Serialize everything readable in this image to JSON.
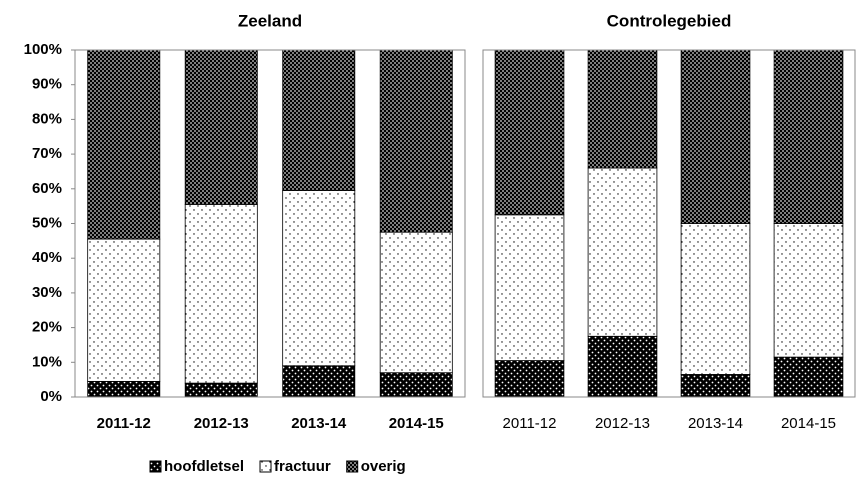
{
  "chart_data": [
    {
      "type": "bar",
      "stacked": true,
      "title": "Zeeland",
      "categories": [
        "2011-12",
        "2012-13",
        "2013-14",
        "2014-15"
      ],
      "category_font_weight": "bold",
      "series": [
        {
          "name": "hoofdletsel",
          "color": "#000000",
          "pattern": "light-dots",
          "values": [
            4.5,
            4,
            9,
            7
          ]
        },
        {
          "name": "fractuur",
          "color": "#ffffff",
          "pattern": "dark-dots",
          "values": [
            41,
            51.5,
            50.5,
            40.5
          ]
        },
        {
          "name": "overig",
          "color": "#000000",
          "pattern": "checker",
          "values": [
            54.5,
            44.5,
            40.5,
            52.5
          ]
        }
      ],
      "ylim": [
        0,
        100
      ],
      "yticks": [
        {
          "value": 0,
          "label": "0%"
        },
        {
          "value": 10,
          "label": "10%"
        },
        {
          "value": 20,
          "label": "20%"
        },
        {
          "value": 30,
          "label": "30%"
        },
        {
          "value": 40,
          "label": "40%"
        },
        {
          "value": 50,
          "label": "50%"
        },
        {
          "value": 60,
          "label": "60%"
        },
        {
          "value": 70,
          "label": "70%"
        },
        {
          "value": 80,
          "label": "80%"
        },
        {
          "value": 90,
          "label": "90%"
        },
        {
          "value": 100,
          "label": "100%"
        }
      ]
    },
    {
      "type": "bar",
      "stacked": true,
      "title": "Controlegebied",
      "categories": [
        "2011-12",
        "2012-13",
        "2013-14",
        "2014-15"
      ],
      "category_font_weight": "normal",
      "series": [
        {
          "color": "#000000",
          "pattern": "light-dots",
          "values": [
            10.5,
            17.5,
            6.5,
            11.5
          ]
        },
        {
          "color": "#ffffff",
          "pattern": "dark-dots",
          "values": [
            42,
            48.5,
            43.5,
            38.5
          ]
        },
        {
          "color": "#000000",
          "pattern": "checker",
          "values": [
            47.5,
            34,
            50,
            50
          ]
        }
      ],
      "ylim": [
        0,
        100
      ]
    }
  ]
}
